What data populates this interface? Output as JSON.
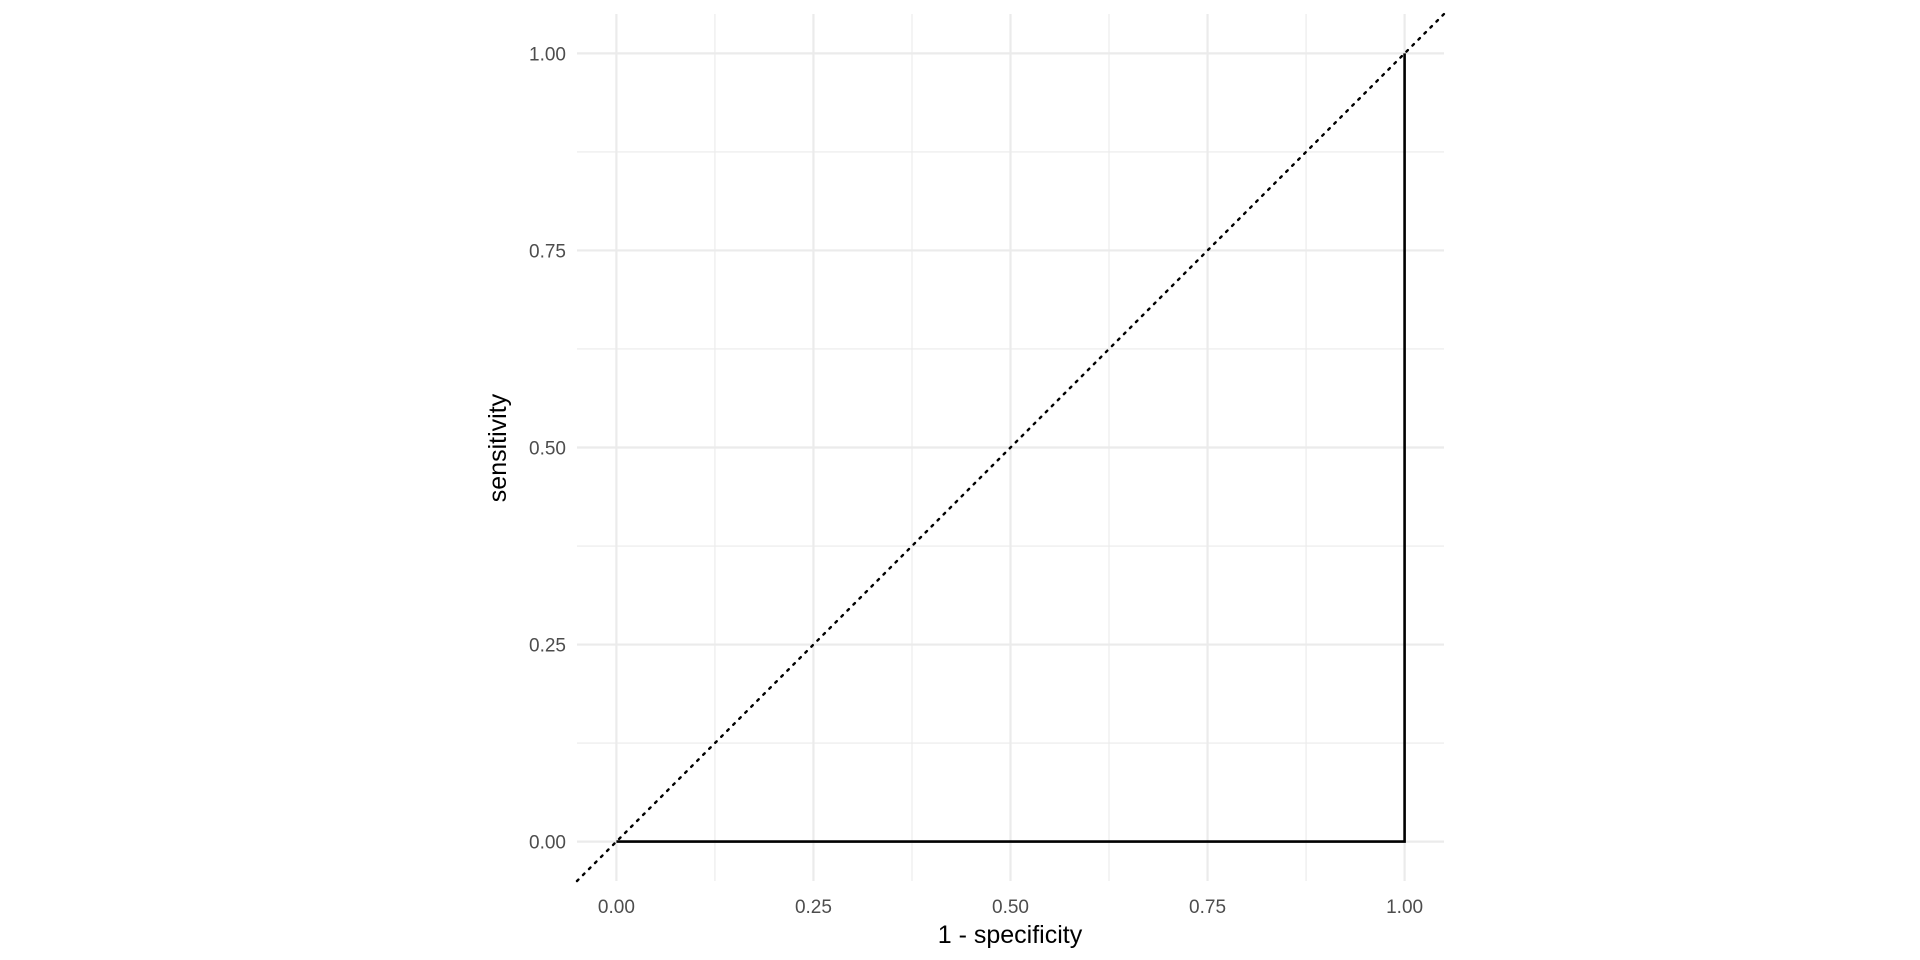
{
  "chart_data": {
    "type": "line",
    "xlabel": "1 - specificity",
    "ylabel": "sensitivity",
    "xlim": [
      -0.05,
      1.05
    ],
    "ylim": [
      -0.05,
      1.05
    ],
    "x_ticks": [
      0,
      0.25,
      0.5,
      0.75,
      1
    ],
    "y_ticks": [
      0,
      0.25,
      0.5,
      0.75,
      1
    ],
    "x_tick_labels": [
      "0.00",
      "0.25",
      "0.50",
      "0.75",
      "1.00"
    ],
    "y_tick_labels": [
      "0.00",
      "0.25",
      "0.50",
      "0.75",
      "1.00"
    ],
    "minor_breaks": [
      0.125,
      0.375,
      0.625,
      0.875
    ],
    "grid": true,
    "aspect": "equal",
    "series": [
      {
        "style": "solid",
        "color": "#000000",
        "x": [
          0,
          1,
          1
        ],
        "y": [
          0,
          0,
          1
        ]
      }
    ],
    "reference_line": {
      "style": "dotted",
      "color": "#000000",
      "slope": 1,
      "intercept": 0
    }
  }
}
